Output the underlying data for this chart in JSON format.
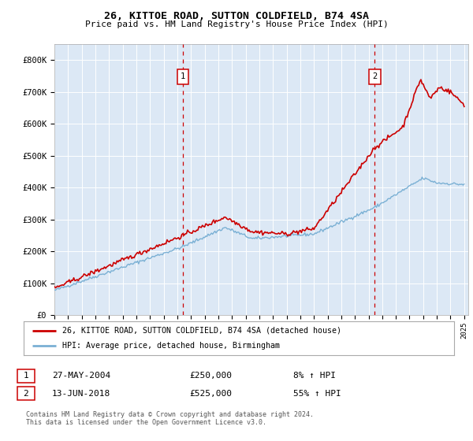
{
  "title": "26, KITTOE ROAD, SUTTON COLDFIELD, B74 4SA",
  "subtitle": "Price paid vs. HM Land Registry's House Price Index (HPI)",
  "background_color": "#ffffff",
  "plot_bg_color": "#dce8f5",
  "x_start_year": 1995,
  "x_end_year": 2025,
  "y_min": 0,
  "y_max": 850000,
  "y_ticks": [
    0,
    100000,
    200000,
    300000,
    400000,
    500000,
    600000,
    700000,
    800000
  ],
  "y_tick_labels": [
    "£0",
    "£100K",
    "£200K",
    "£300K",
    "£400K",
    "£500K",
    "£600K",
    "£700K",
    "£800K"
  ],
  "sale1_date": "27-MAY-2004",
  "sale1_price": 250000,
  "sale1_year": 2004.4,
  "sale1_label": "1",
  "sale1_pct": "8% ↑ HPI",
  "sale2_date": "13-JUN-2018",
  "sale2_price": 525000,
  "sale2_year": 2018.45,
  "sale2_label": "2",
  "sale2_pct": "55% ↑ HPI",
  "legend_line1": "26, KITTOE ROAD, SUTTON COLDFIELD, B74 4SA (detached house)",
  "legend_line2": "HPI: Average price, detached house, Birmingham",
  "footer": "Contains HM Land Registry data © Crown copyright and database right 2024.\nThis data is licensed under the Open Government Licence v3.0.",
  "line_color_sale": "#cc0000",
  "line_color_hpi": "#7ab0d4",
  "dashed_line_color": "#cc0000",
  "grid_color": "#ffffff"
}
